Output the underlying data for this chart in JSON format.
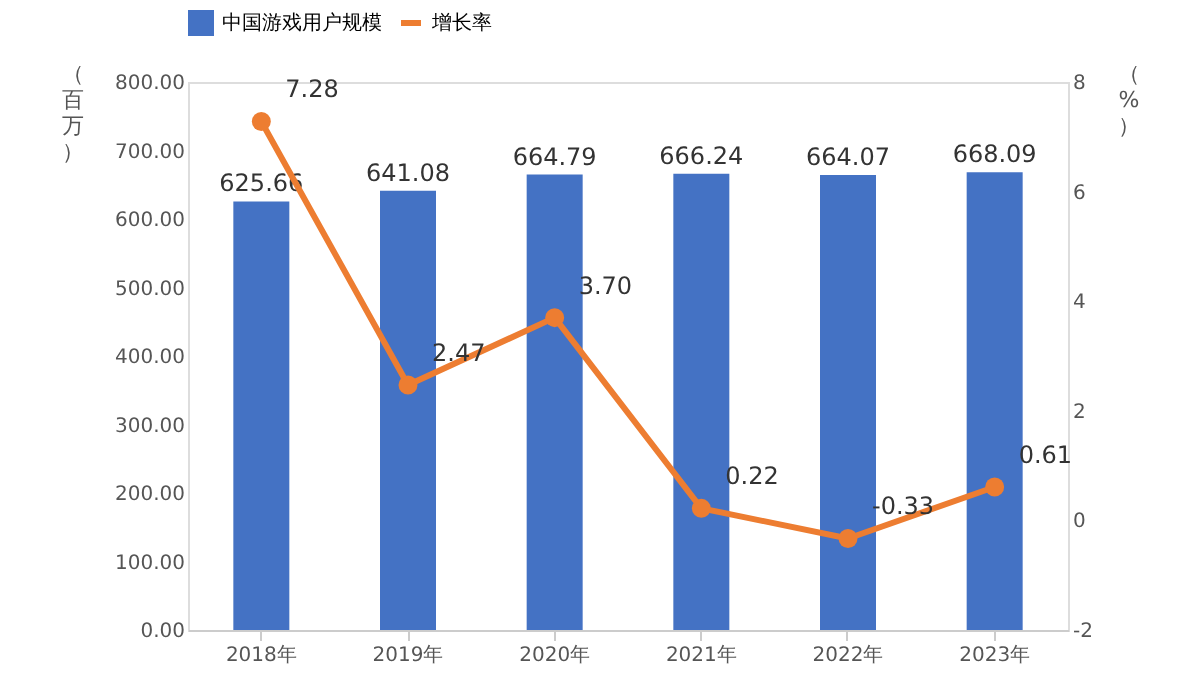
{
  "chart_data": {
    "type": "bar",
    "categories": [
      "2018年",
      "2019年",
      "2020年",
      "2021年",
      "2022年",
      "2023年"
    ],
    "ylabel": "（百万）",
    "y2label": "（%）",
    "series": [
      {
        "name": "中国游戏用户规模",
        "type": "bar",
        "color": "#4472c4",
        "values": [
          625.66,
          641.08,
          664.79,
          666.24,
          664.07,
          668.09
        ]
      },
      {
        "name": "增长率",
        "type": "line",
        "axis": "y2",
        "color": "#ed7d31",
        "values": [
          7.28,
          2.47,
          3.7,
          0.22,
          -0.33,
          0.61
        ],
        "value_labels": [
          "7.28",
          "2.47",
          "3.70",
          "0.22",
          "-0.33",
          "0.61"
        ]
      }
    ],
    "ylim": [
      0,
      800
    ],
    "yticks": [
      {
        "value": 0,
        "label": "0.00"
      },
      {
        "value": 100,
        "label": "100.00"
      },
      {
        "value": 200,
        "label": "200.00"
      },
      {
        "value": 300,
        "label": "300.00"
      },
      {
        "value": 400,
        "label": "400.00"
      },
      {
        "value": 500,
        "label": "500.00"
      },
      {
        "value": 600,
        "label": "600.00"
      },
      {
        "value": 700,
        "label": "700.00"
      },
      {
        "value": 800,
        "label": "800.00"
      }
    ],
    "y2lim": [
      -2,
      8
    ],
    "y2ticks": [
      -2,
      0,
      2,
      4,
      6,
      8
    ],
    "data_labels": true,
    "legend": "top",
    "grid": false,
    "marker": "circle",
    "line_style": "solid"
  }
}
